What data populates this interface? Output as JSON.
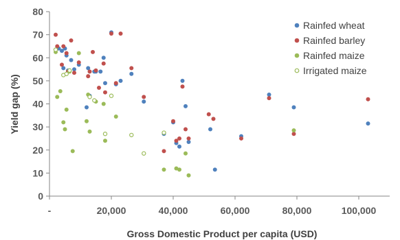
{
  "chart_data": {
    "type": "scatter",
    "title": "",
    "xlabel": "Gross Domestic Product per capita (USD)",
    "ylabel": "Yield gap (%)",
    "xlim": [
      0,
      110000
    ],
    "ylim": [
      0,
      80
    ],
    "x_ticks": [
      {
        "value": 0,
        "label": "-"
      },
      {
        "value": 20000,
        "label": "20,000"
      },
      {
        "value": 40000,
        "label": "40,000"
      },
      {
        "value": 60000,
        "label": "60,000"
      },
      {
        "value": 80000,
        "label": "80,000"
      },
      {
        "value": 100000,
        "label": "100,000"
      }
    ],
    "y_ticks": [
      0,
      10,
      20,
      30,
      40,
      50,
      60,
      70,
      80
    ],
    "grid": false,
    "legend_position": "top-right",
    "series": [
      {
        "name": "Rainfed wheat",
        "color": "#4f81bd",
        "marker": "filled",
        "points": [
          [
            3000,
            64
          ],
          [
            4000,
            63
          ],
          [
            4500,
            55.5
          ],
          [
            5000,
            64
          ],
          [
            5500,
            61
          ],
          [
            6000,
            54.5
          ],
          [
            7000,
            59
          ],
          [
            8000,
            55
          ],
          [
            9500,
            57
          ],
          [
            12000,
            38.5
          ],
          [
            12500,
            55.5
          ],
          [
            13000,
            43.5
          ],
          [
            14500,
            54
          ],
          [
            15000,
            54
          ],
          [
            16500,
            54
          ],
          [
            17500,
            60
          ],
          [
            18000,
            49
          ],
          [
            20000,
            71
          ],
          [
            21500,
            48.5
          ],
          [
            23000,
            50
          ],
          [
            26500,
            53
          ],
          [
            30500,
            41
          ],
          [
            37000,
            27
          ],
          [
            40000,
            32
          ],
          [
            41000,
            23
          ],
          [
            42000,
            21.5
          ],
          [
            43000,
            50
          ],
          [
            44000,
            39
          ],
          [
            45000,
            23.5
          ],
          [
            52000,
            29
          ],
          [
            53500,
            11.5
          ],
          [
            62000,
            26
          ],
          [
            71000,
            44
          ],
          [
            79000,
            38.5
          ],
          [
            103000,
            31.5
          ]
        ]
      },
      {
        "name": "Rainfed barley",
        "color": "#c0504d",
        "marker": "filled",
        "points": [
          [
            2000,
            70
          ],
          [
            2500,
            65
          ],
          [
            4000,
            57
          ],
          [
            4500,
            65
          ],
          [
            5500,
            62
          ],
          [
            6000,
            54
          ],
          [
            7000,
            67.5
          ],
          [
            8000,
            53.5
          ],
          [
            9500,
            58
          ],
          [
            12500,
            52
          ],
          [
            13000,
            54
          ],
          [
            14000,
            62.5
          ],
          [
            15000,
            54.5
          ],
          [
            16000,
            47
          ],
          [
            17500,
            57.5
          ],
          [
            18000,
            45
          ],
          [
            20000,
            70.5
          ],
          [
            21500,
            49
          ],
          [
            23000,
            70.5
          ],
          [
            26500,
            55.5
          ],
          [
            30500,
            43
          ],
          [
            37000,
            19.5
          ],
          [
            40000,
            32.5
          ],
          [
            41000,
            24
          ],
          [
            42000,
            25
          ],
          [
            43000,
            47.5
          ],
          [
            44000,
            29
          ],
          [
            45000,
            25
          ],
          [
            51500,
            35.5
          ],
          [
            53000,
            33.5
          ],
          [
            62000,
            25
          ],
          [
            71000,
            42.5
          ],
          [
            79000,
            27
          ],
          [
            103000,
            42
          ]
        ]
      },
      {
        "name": "Rainfed maize",
        "color": "#9bbb59",
        "marker": "filled",
        "points": [
          [
            2000,
            62.5
          ],
          [
            2500,
            43
          ],
          [
            3500,
            45.5
          ],
          [
            4500,
            32
          ],
          [
            5000,
            29
          ],
          [
            5500,
            37.5
          ],
          [
            6500,
            54
          ],
          [
            7500,
            19.5
          ],
          [
            9500,
            62
          ],
          [
            12000,
            32.5
          ],
          [
            12500,
            44
          ],
          [
            13000,
            28
          ],
          [
            15000,
            41
          ],
          [
            17500,
            40
          ],
          [
            18000,
            24
          ],
          [
            21500,
            34.5
          ],
          [
            37000,
            11.5
          ],
          [
            41000,
            12
          ],
          [
            42000,
            11.5
          ],
          [
            44000,
            18.5
          ],
          [
            45000,
            9
          ],
          [
            79000,
            28.5
          ]
        ]
      },
      {
        "name": "Irrigated maize",
        "color": "#9bbb59",
        "marker": "hollow",
        "points": [
          [
            2000,
            63.5
          ],
          [
            4500,
            52.5
          ],
          [
            5500,
            53
          ],
          [
            6500,
            54.5
          ],
          [
            13000,
            43
          ],
          [
            14500,
            41.5
          ],
          [
            18000,
            27
          ],
          [
            20000,
            43.5
          ],
          [
            26500,
            26.5
          ],
          [
            30500,
            18.5
          ],
          [
            37000,
            27.5
          ]
        ]
      }
    ]
  }
}
